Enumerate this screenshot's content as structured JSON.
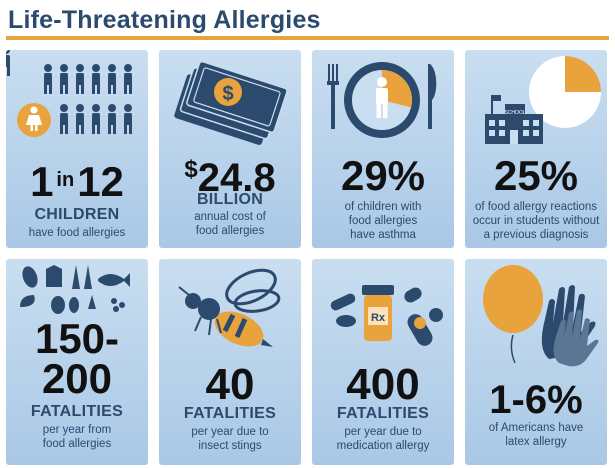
{
  "title": "Life-Threatening Allergies",
  "colors": {
    "navy": "#2b4a6e",
    "accent": "#e8a33d",
    "card": "#b6d1ea",
    "text_dark": "#111111"
  },
  "cards": [
    {
      "icon": "people-icon",
      "stat_a": "1",
      "stat_in": "in",
      "stat_b": "12",
      "label": "CHILDREN",
      "desc": [
        "have food allergies"
      ]
    },
    {
      "icon": "money-stack-icon",
      "stat_a": "$",
      "stat_b": "24.8",
      "label": "BILLION",
      "desc": [
        "annual cost of",
        "food allergies"
      ]
    },
    {
      "icon": "plate-pie-icon",
      "stat": "29%",
      "desc": [
        "of children with",
        "food allergies",
        "have asthma"
      ],
      "share": 0.29
    },
    {
      "icon": "school-pie-icon",
      "stat": "25%",
      "desc": [
        "of food allergy reactions",
        "occur in students without",
        "a previous diagnosis"
      ],
      "share": 0.25,
      "school_sign": "SCHOOL"
    },
    {
      "icon": "food-items-icon",
      "stat_line1": "150-",
      "stat_line2": "200",
      "label": "FATALITIES",
      "desc": [
        "per year from",
        "food allergies"
      ]
    },
    {
      "icon": "bee-icon",
      "stat": "40",
      "label": "FATALITIES",
      "desc": [
        "per year due to",
        "insect stings"
      ]
    },
    {
      "icon": "medication-icon",
      "stat": "400",
      "label": "FATALITIES",
      "desc": [
        "per year due to",
        "medication allergy"
      ],
      "rx": "Rx"
    },
    {
      "icon": "balloon-glove-icon",
      "stat": "1-6%",
      "desc": [
        "of Americans have",
        "latex allergy"
      ]
    }
  ]
}
